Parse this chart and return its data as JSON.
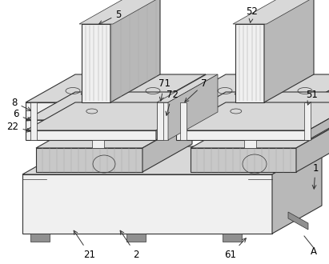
{
  "bg_color": "#ffffff",
  "lc": "#333333",
  "c_face": "#f0f0f0",
  "c_top": "#d8d8d8",
  "c_side": "#b8b8b8",
  "c_dark": "#909090",
  "c_hatch": "#c8c8c8",
  "c_rib": "#aaaaaa"
}
